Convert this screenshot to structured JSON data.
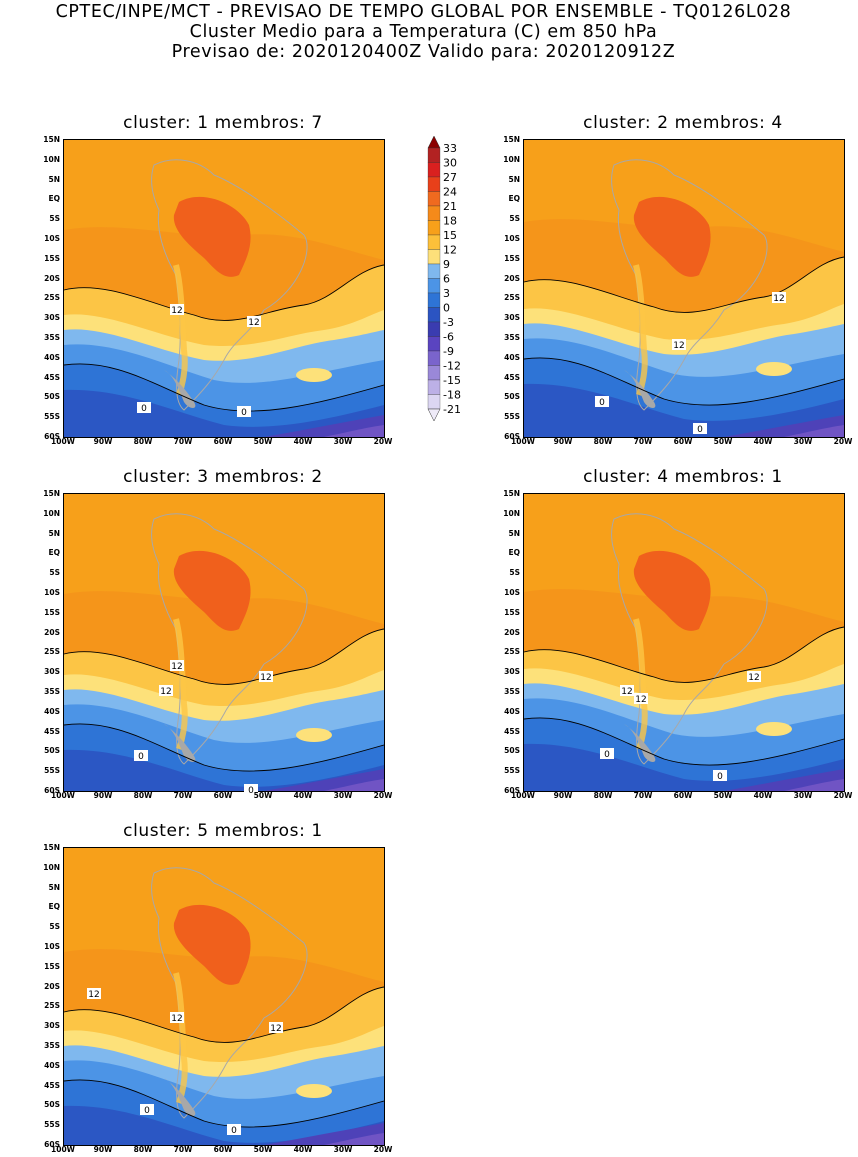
{
  "header": {
    "line1": "CPTEC/INPE/MCT - PREVISAO DE TEMPO GLOBAL POR ENSEMBLE - TQ0126L028",
    "line2": "Cluster Medio para a Temperatura (C) em 850 hPa",
    "line3": "Previsao de: 2020120400Z   Valido para: 2020120912Z"
  },
  "panels": [
    {
      "title": "cluster: 1  membros: 7",
      "contour_labels": [
        "12",
        "12",
        "0",
        "0"
      ]
    },
    {
      "title": "cluster: 2  membros: 4",
      "contour_labels": [
        "12",
        "12",
        "0",
        "0"
      ]
    },
    {
      "title": "cluster: 3  membros: 2",
      "contour_labels": [
        "12",
        "12",
        "12",
        "0",
        "0"
      ]
    },
    {
      "title": "cluster: 4  membros: 1",
      "contour_labels": [
        "12",
        "12",
        "12",
        "0",
        "0"
      ]
    },
    {
      "title": "cluster: 5  membros: 1",
      "contour_labels": [
        "12",
        "12",
        "12",
        "0",
        "0"
      ]
    }
  ],
  "axes": {
    "lat_ticks": [
      "15N",
      "10N",
      "5N",
      "EQ",
      "5S",
      "10S",
      "15S",
      "20S",
      "25S",
      "30S",
      "35S",
      "40S",
      "45S",
      "50S",
      "55S",
      "60S"
    ],
    "lon_ticks": [
      "100W",
      "90W",
      "80W",
      "70W",
      "60W",
      "50W",
      "40W",
      "30W",
      "20W"
    ]
  },
  "colorbar": {
    "labels": [
      "33",
      "30",
      "27",
      "24",
      "21",
      "18",
      "15",
      "12",
      "9",
      "6",
      "3",
      "0",
      "-3",
      "-6",
      "-9",
      "-12",
      "-15",
      "-18",
      "-21"
    ],
    "colors": [
      "#8b0000",
      "#b22222",
      "#d9201f",
      "#e8401a",
      "#f06a1f",
      "#f58a1a",
      "#f7a01a",
      "#fcc03a",
      "#fde07a",
      "#7fb8ee",
      "#4c94e6",
      "#2e74d6",
      "#2b54c2",
      "#3a3cb0",
      "#5a44c0",
      "#7a64cc",
      "#9a88d8",
      "#bcb0e6",
      "#dcd6f2"
    ]
  }
}
